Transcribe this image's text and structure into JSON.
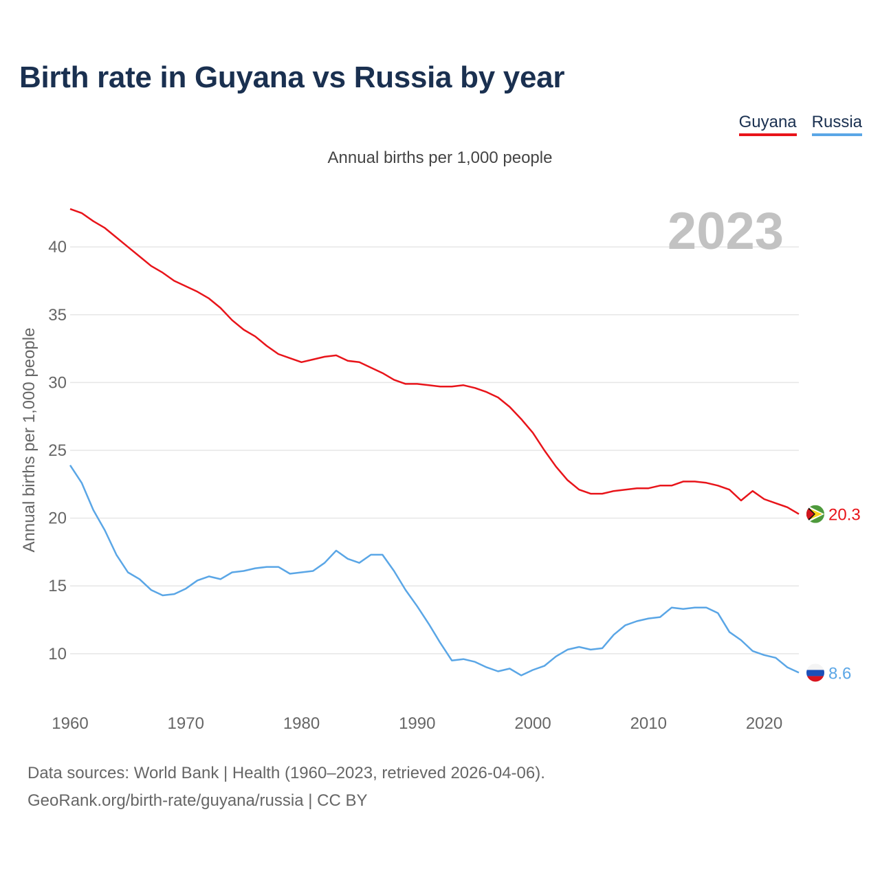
{
  "title": "Birth rate in Guyana vs Russia by year",
  "subtitle": "Annual births per 1,000 people",
  "legend": [
    {
      "name": "Guyana",
      "color": "#e8141a"
    },
    {
      "name": "Russia",
      "color": "#5aa6e6"
    }
  ],
  "year_watermark": "2023",
  "footer": {
    "line1": "Data sources: World Bank | Health (1960–2023, retrieved 2026-04-06).",
    "line2": "GeoRank.org/birth-rate/guyana/russia | CC BY"
  },
  "chart_data": {
    "type": "line",
    "title": "Birth rate in Guyana vs Russia by year",
    "subtitle": "Annual births per 1,000 people",
    "xlabel": "",
    "ylabel": "Annual births per 1,000 people",
    "xlim": [
      1960,
      2023
    ],
    "ylim": [
      7,
      43
    ],
    "x_ticks": [
      1960,
      1970,
      1980,
      1990,
      2000,
      2010,
      2020
    ],
    "y_ticks": [
      10,
      15,
      20,
      25,
      30,
      35,
      40
    ],
    "grid": true,
    "legend_position": "top-right",
    "x": [
      1960,
      1961,
      1962,
      1963,
      1964,
      1965,
      1966,
      1967,
      1968,
      1969,
      1970,
      1971,
      1972,
      1973,
      1974,
      1975,
      1976,
      1977,
      1978,
      1979,
      1980,
      1981,
      1982,
      1983,
      1984,
      1985,
      1986,
      1987,
      1988,
      1989,
      1990,
      1991,
      1992,
      1993,
      1994,
      1995,
      1996,
      1997,
      1998,
      1999,
      2000,
      2001,
      2002,
      2003,
      2004,
      2005,
      2006,
      2007,
      2008,
      2009,
      2010,
      2011,
      2012,
      2013,
      2014,
      2015,
      2016,
      2017,
      2018,
      2019,
      2020,
      2021,
      2022,
      2023
    ],
    "series": [
      {
        "name": "Guyana",
        "color": "#e8141a",
        "end_label": "20.3",
        "values": [
          42.8,
          42.5,
          41.9,
          41.4,
          40.7,
          40.0,
          39.3,
          38.6,
          38.1,
          37.5,
          37.1,
          36.7,
          36.2,
          35.5,
          34.6,
          33.9,
          33.4,
          32.7,
          32.1,
          31.8,
          31.5,
          31.7,
          31.9,
          32.0,
          31.6,
          31.5,
          31.1,
          30.7,
          30.2,
          29.9,
          29.9,
          29.8,
          29.7,
          29.7,
          29.8,
          29.6,
          29.3,
          28.9,
          28.2,
          27.3,
          26.3,
          25.0,
          23.8,
          22.8,
          22.1,
          21.8,
          21.8,
          22.0,
          22.1,
          22.2,
          22.2,
          22.4,
          22.4,
          22.7,
          22.7,
          22.6,
          22.4,
          22.1,
          21.3,
          22.0,
          21.4,
          21.1,
          20.8,
          20.3
        ]
      },
      {
        "name": "Russia",
        "color": "#5aa6e6",
        "end_label": "8.6",
        "values": [
          23.9,
          22.6,
          20.6,
          19.1,
          17.3,
          16.0,
          15.5,
          14.7,
          14.3,
          14.4,
          14.8,
          15.4,
          15.7,
          15.5,
          16.0,
          16.1,
          16.3,
          16.4,
          16.4,
          15.9,
          16.0,
          16.1,
          16.7,
          17.6,
          17.0,
          16.7,
          17.3,
          17.3,
          16.1,
          14.7,
          13.5,
          12.2,
          10.8,
          9.5,
          9.6,
          9.4,
          9.0,
          8.7,
          8.9,
          8.4,
          8.8,
          9.1,
          9.8,
          10.3,
          10.5,
          10.3,
          10.4,
          11.4,
          12.1,
          12.4,
          12.6,
          12.7,
          13.4,
          13.3,
          13.4,
          13.4,
          13.0,
          11.6,
          11.0,
          10.2,
          9.9,
          9.7,
          9.0,
          8.6
        ]
      }
    ]
  }
}
